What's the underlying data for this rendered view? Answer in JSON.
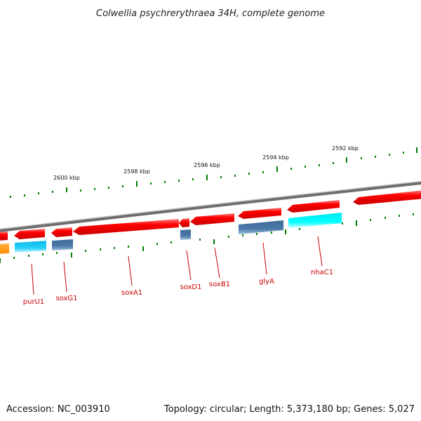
{
  "title": "Colwellia psychrerythraea 34H, complete genome",
  "ticks": [
    {
      "label": "2600 kbp"
    },
    {
      "label": "2598 kbp"
    },
    {
      "label": "2596 kbp"
    },
    {
      "label": "2594 kbp"
    },
    {
      "label": "2592 kbp"
    }
  ],
  "genes": [
    {
      "name": "purU1"
    },
    {
      "name": "soxG1"
    },
    {
      "name": "soxA1"
    },
    {
      "name": "soxD1"
    },
    {
      "name": "soxB1"
    },
    {
      "name": "glyA"
    },
    {
      "name": "nhaC1"
    }
  ],
  "colors": {
    "forward_cds": "#ff0000",
    "reverse_cds_dark": "#4a78a8",
    "reverse_cds_cyan": "#1ec8f0",
    "reverse_cds_orange": "#ff9900",
    "backbone": "#888888",
    "tick": "#008000",
    "label": "#cc0000"
  },
  "footer": {
    "accession": "Accession: NC_003910",
    "summary": "Topology: circular; Length: 5,373,180 bp; Genes: 5,027"
  }
}
